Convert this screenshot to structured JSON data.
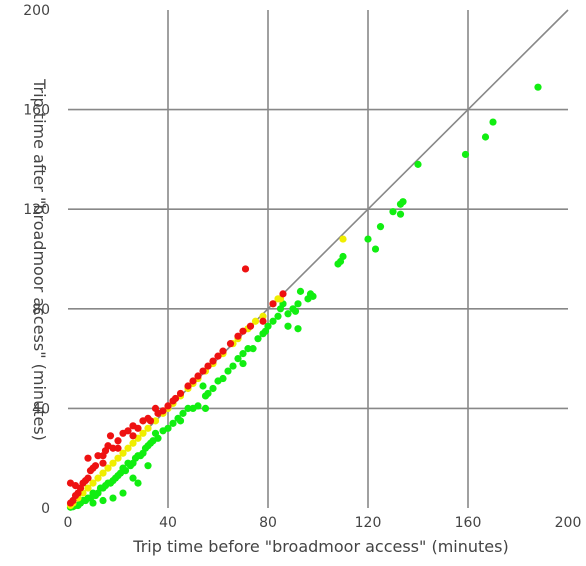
{
  "chart_data": {
    "type": "scatter",
    "title": "",
    "xlabel": "Trip time before \"broadmoor access\" (minutes)",
    "ylabel": "Trip time after \"broadmoor access\" (minutes)",
    "xlim": [
      0,
      200
    ],
    "ylim": [
      0,
      200
    ],
    "xticks": [
      "0",
      "40",
      "80",
      "120",
      "160",
      "200"
    ],
    "yticks": [
      "0",
      "40",
      "80",
      "120",
      "160",
      "200"
    ],
    "grid": true,
    "reference_line": "y = x",
    "colors": {
      "slower": "#ee1111",
      "unchanged": "#f0ee00",
      "faster": "#11ee11",
      "grid": "#888888",
      "reference": "#888888"
    },
    "series": [
      {
        "key": "faster",
        "points": [
          [
            188,
            169
          ],
          [
            170,
            155
          ],
          [
            167,
            149
          ],
          [
            159,
            142
          ],
          [
            140,
            138
          ],
          [
            134,
            123
          ],
          [
            133,
            122
          ],
          [
            133,
            118
          ],
          [
            130,
            119
          ],
          [
            125,
            113
          ],
          [
            123,
            104
          ],
          [
            120,
            108
          ],
          [
            110,
            101
          ],
          [
            109,
            99
          ],
          [
            108,
            98
          ],
          [
            98,
            85
          ],
          [
            97,
            86
          ],
          [
            96,
            84
          ],
          [
            93,
            87
          ],
          [
            92,
            82
          ],
          [
            91,
            79
          ],
          [
            90,
            80
          ],
          [
            88,
            78
          ],
          [
            86,
            82
          ],
          [
            85,
            80
          ],
          [
            84,
            77
          ],
          [
            82,
            75
          ],
          [
            80,
            73
          ],
          [
            79,
            71
          ],
          [
            78,
            70
          ],
          [
            76,
            68
          ],
          [
            74,
            64
          ],
          [
            72,
            64
          ],
          [
            70,
            62
          ],
          [
            68,
            60
          ],
          [
            66,
            57
          ],
          [
            64,
            55
          ],
          [
            62,
            52
          ],
          [
            60,
            51
          ],
          [
            58,
            48
          ],
          [
            56,
            46
          ],
          [
            55,
            45
          ],
          [
            54,
            49
          ],
          [
            52,
            41
          ],
          [
            50,
            40
          ],
          [
            48,
            40
          ],
          [
            46,
            38
          ],
          [
            45,
            35
          ],
          [
            44,
            36
          ],
          [
            42,
            34
          ],
          [
            40,
            32
          ],
          [
            38,
            31
          ],
          [
            36,
            28
          ],
          [
            35,
            30
          ],
          [
            34,
            27
          ],
          [
            33,
            26
          ],
          [
            32,
            25
          ],
          [
            31,
            24
          ],
          [
            30,
            22
          ],
          [
            29,
            21
          ],
          [
            28,
            21
          ],
          [
            27,
            20
          ],
          [
            26,
            18
          ],
          [
            25,
            17
          ],
          [
            24,
            18
          ],
          [
            23,
            15
          ],
          [
            22,
            16
          ],
          [
            21,
            14
          ],
          [
            20,
            13
          ],
          [
            19,
            12
          ],
          [
            18,
            11
          ],
          [
            17,
            10
          ],
          [
            16,
            10
          ],
          [
            15,
            9
          ],
          [
            14,
            8
          ],
          [
            13,
            8
          ],
          [
            12,
            6
          ],
          [
            11,
            5
          ],
          [
            10,
            6
          ],
          [
            9,
            4
          ],
          [
            8,
            4
          ],
          [
            7,
            3
          ],
          [
            6,
            3
          ],
          [
            5,
            2
          ],
          [
            4,
            1
          ],
          [
            3,
            1
          ],
          [
            2,
            0.5
          ],
          [
            1,
            0.3
          ],
          [
            55,
            40
          ],
          [
            70,
            58
          ],
          [
            88,
            73
          ],
          [
            92,
            72
          ],
          [
            28,
            10
          ],
          [
            22,
            6
          ],
          [
            18,
            4
          ],
          [
            14,
            3
          ],
          [
            10,
            2
          ],
          [
            26,
            12
          ],
          [
            32,
            17
          ]
        ]
      },
      {
        "key": "unchanged",
        "points": [
          [
            110,
            108
          ],
          [
            85,
            84
          ],
          [
            84,
            84
          ],
          [
            82,
            82
          ],
          [
            78,
            77
          ],
          [
            75,
            75
          ],
          [
            72,
            72
          ],
          [
            68,
            68
          ],
          [
            66,
            66
          ],
          [
            62,
            62
          ],
          [
            58,
            58
          ],
          [
            55,
            55
          ],
          [
            52,
            52
          ],
          [
            50,
            50
          ],
          [
            48,
            48
          ],
          [
            45,
            45
          ],
          [
            42,
            42
          ],
          [
            40,
            40
          ],
          [
            38,
            38
          ],
          [
            35,
            35
          ],
          [
            32,
            32
          ],
          [
            30,
            30
          ],
          [
            28,
            28
          ],
          [
            26,
            26
          ],
          [
            24,
            24
          ],
          [
            22,
            22
          ],
          [
            20,
            20
          ],
          [
            18,
            18
          ],
          [
            16,
            16
          ],
          [
            14,
            14
          ],
          [
            12,
            12
          ],
          [
            10,
            10
          ],
          [
            8,
            8
          ],
          [
            6,
            6
          ],
          [
            4,
            4
          ],
          [
            2,
            2
          ],
          [
            1,
            1
          ]
        ]
      },
      {
        "key": "slower",
        "points": [
          [
            71,
            96
          ],
          [
            86,
            86
          ],
          [
            82,
            82
          ],
          [
            78,
            75
          ],
          [
            73,
            73
          ],
          [
            70,
            71
          ],
          [
            68,
            69
          ],
          [
            65,
            66
          ],
          [
            62,
            63
          ],
          [
            60,
            61
          ],
          [
            58,
            59
          ],
          [
            56,
            57
          ],
          [
            54,
            55
          ],
          [
            52,
            53
          ],
          [
            50,
            51
          ],
          [
            48,
            49
          ],
          [
            45,
            46
          ],
          [
            43,
            44
          ],
          [
            40,
            41
          ],
          [
            38,
            39
          ],
          [
            36,
            38
          ],
          [
            35,
            40
          ],
          [
            33,
            35
          ],
          [
            30,
            35
          ],
          [
            28,
            32
          ],
          [
            26,
            33
          ],
          [
            24,
            31
          ],
          [
            22,
            30
          ],
          [
            20,
            27
          ],
          [
            18,
            24
          ],
          [
            17,
            29
          ],
          [
            16,
            25
          ],
          [
            15,
            23
          ],
          [
            14,
            21
          ],
          [
            12,
            21
          ],
          [
            11,
            17
          ],
          [
            10,
            16
          ],
          [
            9,
            15
          ],
          [
            8,
            12
          ],
          [
            7,
            11
          ],
          [
            6,
            10
          ],
          [
            5,
            8
          ],
          [
            4,
            6
          ],
          [
            3,
            5
          ],
          [
            2,
            3
          ],
          [
            1,
            2
          ],
          [
            1,
            10
          ],
          [
            3,
            9
          ],
          [
            8,
            20
          ],
          [
            14,
            18
          ],
          [
            20,
            24
          ],
          [
            26,
            29
          ],
          [
            32,
            36
          ],
          [
            42,
            43
          ]
        ]
      }
    ]
  }
}
